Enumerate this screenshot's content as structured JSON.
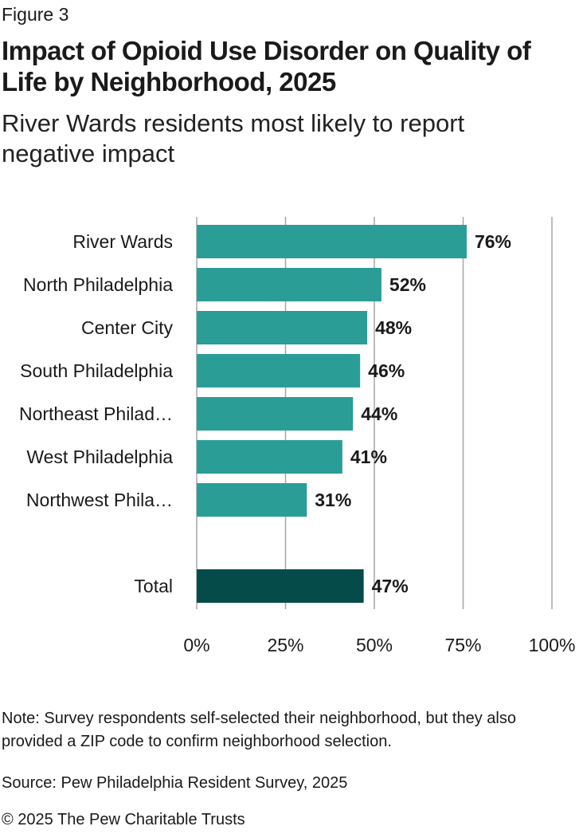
{
  "figure_label": "Figure 3",
  "title": "Impact of Opioid Use Disorder on Quality of Life by Neighborhood, 2025",
  "subtitle": "River Wards residents most likely to report negative impact",
  "note": "Note: Survey respondents self-selected their neighborhood, but they also provided a ZIP code to confirm neighborhood selection.",
  "source": "Source: Pew Philadelphia Resident Survey, 2025",
  "copyright": "© 2025 The Pew Charitable Trusts",
  "colors": {
    "bar": "#2a9d96",
    "total_bar": "#044b4a",
    "grid": "#a6a6a6"
  },
  "chart_data": {
    "type": "bar",
    "orientation": "horizontal",
    "categories": [
      "River Wards",
      "North Philadelphia",
      "Center City",
      "South Philadelphia",
      "Northeast Philad…",
      "West Philadelphia",
      "Northwest Phila…",
      "Total"
    ],
    "values": [
      76,
      52,
      48,
      46,
      44,
      41,
      31,
      47
    ],
    "value_labels": [
      "76%",
      "52%",
      "48%",
      "46%",
      "44%",
      "41%",
      "31%",
      "47%"
    ],
    "highlight_category": "Total",
    "xlim": [
      0,
      100
    ],
    "xticks": [
      0,
      25,
      50,
      75,
      100
    ],
    "xtick_labels": [
      "0%",
      "25%",
      "50%",
      "75%",
      "100%"
    ],
    "grid": true,
    "legend": "none"
  }
}
